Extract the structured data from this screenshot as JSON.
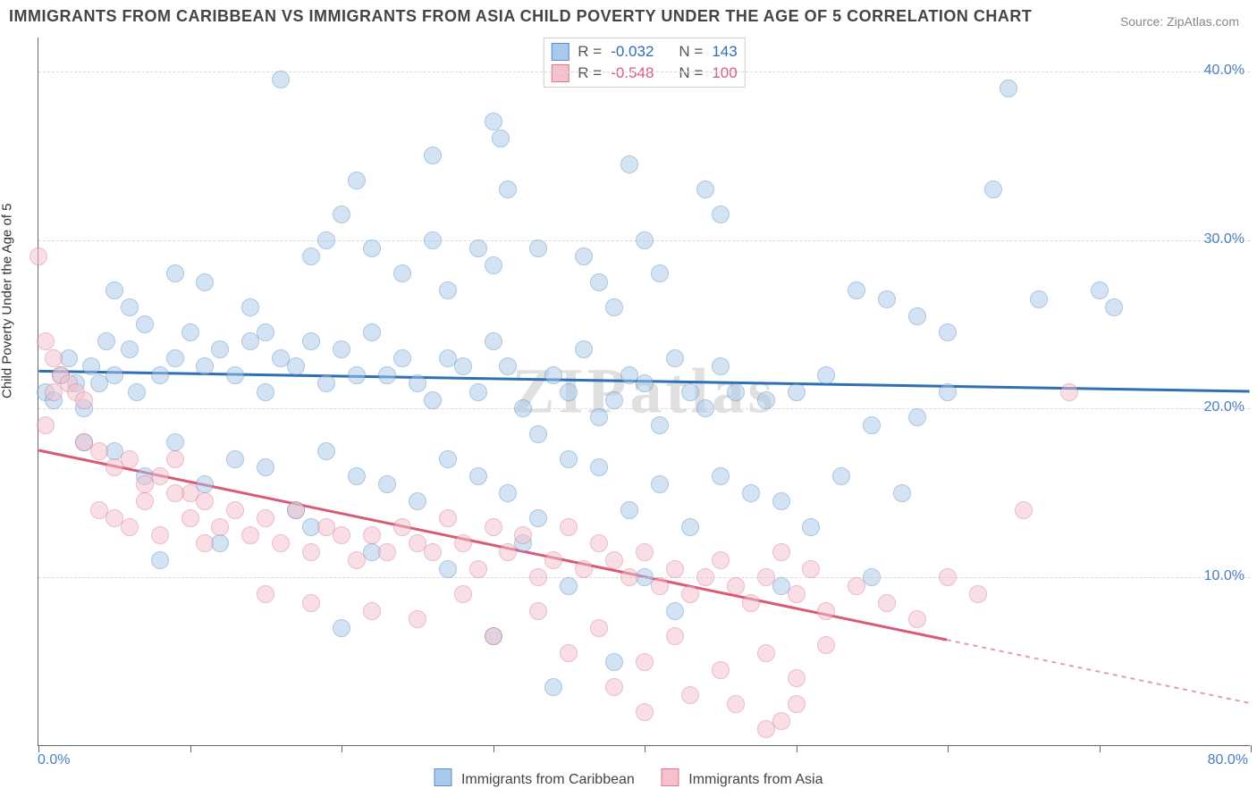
{
  "title": "IMMIGRANTS FROM CARIBBEAN VS IMMIGRANTS FROM ASIA CHILD POVERTY UNDER THE AGE OF 5 CORRELATION CHART",
  "source": "Source: ZipAtlas.com",
  "watermark": "ZIPatlas",
  "y_axis_label": "Child Poverty Under the Age of 5",
  "chart": {
    "type": "scatter",
    "xlim": [
      0,
      80
    ],
    "ylim": [
      0,
      42
    ],
    "xtick_positions": [
      0,
      10,
      20,
      30,
      40,
      50,
      60,
      70,
      80
    ],
    "yticks": [
      {
        "v": 10,
        "label": "10.0%",
        "color": "#4a7fc0"
      },
      {
        "v": 20,
        "label": "20.0%",
        "color": "#4a7fc0"
      },
      {
        "v": 30,
        "label": "30.0%",
        "color": "#4a7fc0"
      },
      {
        "v": 40,
        "label": "40.0%",
        "color": "#4a7fc0"
      }
    ],
    "x_end_labels": {
      "left": {
        "text": "0.0%",
        "color": "#4a7fc0"
      },
      "right": {
        "text": "80.0%",
        "color": "#4a7fc0"
      }
    },
    "grid_color": "#d9d9d9",
    "marker_radius": 10,
    "marker_opacity": 0.5,
    "series": [
      {
        "name": "Immigrants from Caribbean",
        "fill": "#a9c8ea",
        "stroke": "#5b8fc7",
        "line_color": "#2f6fb3",
        "trend": {
          "x0": 0,
          "y0": 22.2,
          "x1": 80,
          "y1": 21.0,
          "dashed_from": null
        },
        "stats": {
          "R": "-0.032",
          "N": "143"
        },
        "points": [
          [
            16,
            39.5
          ],
          [
            64,
            39
          ],
          [
            30,
            37
          ],
          [
            30.5,
            36
          ],
          [
            26,
            35
          ],
          [
            21,
            33.5
          ],
          [
            31,
            33
          ],
          [
            39,
            34.5
          ],
          [
            44,
            33
          ],
          [
            63,
            33
          ],
          [
            5,
            27
          ],
          [
            6,
            26
          ],
          [
            9,
            28
          ],
          [
            11,
            27.5
          ],
          [
            14,
            26
          ],
          [
            15,
            24.5
          ],
          [
            18,
            29
          ],
          [
            19,
            30
          ],
          [
            20,
            31.5
          ],
          [
            22,
            29.5
          ],
          [
            24,
            28
          ],
          [
            26,
            30
          ],
          [
            27,
            27
          ],
          [
            29,
            29.5
          ],
          [
            30,
            28.5
          ],
          [
            33,
            29.5
          ],
          [
            36,
            29
          ],
          [
            37,
            27.5
          ],
          [
            38,
            26
          ],
          [
            40,
            30
          ],
          [
            41,
            28
          ],
          [
            45,
            31.5
          ],
          [
            54,
            27
          ],
          [
            56,
            26.5
          ],
          [
            58,
            25.5
          ],
          [
            60,
            24.5
          ],
          [
            66,
            26.5
          ],
          [
            70,
            27
          ],
          [
            71,
            26
          ],
          [
            0.5,
            21
          ],
          [
            1,
            20.5
          ],
          [
            1.5,
            22
          ],
          [
            2,
            23
          ],
          [
            2.5,
            21.5
          ],
          [
            3,
            20
          ],
          [
            3.5,
            22.5
          ],
          [
            4,
            21.5
          ],
          [
            4.5,
            24
          ],
          [
            5,
            22
          ],
          [
            6,
            23.5
          ],
          [
            6.5,
            21
          ],
          [
            7,
            25
          ],
          [
            8,
            22
          ],
          [
            9,
            23
          ],
          [
            10,
            24.5
          ],
          [
            11,
            22.5
          ],
          [
            12,
            23.5
          ],
          [
            13,
            22
          ],
          [
            14,
            24
          ],
          [
            15,
            21
          ],
          [
            16,
            23
          ],
          [
            17,
            22.5
          ],
          [
            18,
            24
          ],
          [
            19,
            21.5
          ],
          [
            20,
            23.5
          ],
          [
            21,
            22
          ],
          [
            22,
            24.5
          ],
          [
            23,
            22
          ],
          [
            24,
            23
          ],
          [
            25,
            21.5
          ],
          [
            26,
            20.5
          ],
          [
            27,
            23
          ],
          [
            28,
            22.5
          ],
          [
            29,
            21
          ],
          [
            30,
            24
          ],
          [
            31,
            22.5
          ],
          [
            32,
            20
          ],
          [
            33,
            18.5
          ],
          [
            34,
            22
          ],
          [
            35,
            21
          ],
          [
            36,
            23.5
          ],
          [
            37,
            19.5
          ],
          [
            38,
            20.5
          ],
          [
            39,
            22
          ],
          [
            40,
            21.5
          ],
          [
            41,
            19
          ],
          [
            42,
            23
          ],
          [
            43,
            21
          ],
          [
            44,
            20
          ],
          [
            45,
            22.5
          ],
          [
            46,
            21
          ],
          [
            48,
            20.5
          ],
          [
            50,
            21
          ],
          [
            52,
            22
          ],
          [
            55,
            19
          ],
          [
            58,
            19.5
          ],
          [
            60,
            21
          ],
          [
            3,
            18
          ],
          [
            5,
            17.5
          ],
          [
            7,
            16
          ],
          [
            9,
            18
          ],
          [
            11,
            15.5
          ],
          [
            13,
            17
          ],
          [
            15,
            16.5
          ],
          [
            17,
            14
          ],
          [
            19,
            17.5
          ],
          [
            21,
            16
          ],
          [
            23,
            15.5
          ],
          [
            25,
            14.5
          ],
          [
            27,
            17
          ],
          [
            29,
            16
          ],
          [
            31,
            15
          ],
          [
            33,
            13.5
          ],
          [
            35,
            17
          ],
          [
            37,
            16.5
          ],
          [
            39,
            14
          ],
          [
            41,
            15.5
          ],
          [
            43,
            13
          ],
          [
            45,
            16
          ],
          [
            47,
            15
          ],
          [
            49,
            14.5
          ],
          [
            51,
            13
          ],
          [
            53,
            16
          ],
          [
            55,
            10
          ],
          [
            57,
            15
          ],
          [
            8,
            11
          ],
          [
            12,
            12
          ],
          [
            18,
            13
          ],
          [
            22,
            11.5
          ],
          [
            27,
            10.5
          ],
          [
            32,
            12
          ],
          [
            35,
            9.5
          ],
          [
            40,
            10
          ],
          [
            42,
            8
          ],
          [
            49,
            9.5
          ],
          [
            34,
            3.5
          ],
          [
            20,
            7
          ],
          [
            30,
            6.5
          ],
          [
            38,
            5
          ]
        ]
      },
      {
        "name": "Immigrants from Asia",
        "fill": "#f4c1cd",
        "stroke": "#d87a94",
        "line_color": "#d85a77",
        "trend": {
          "x0": 0,
          "y0": 17.5,
          "x1": 80,
          "y1": 2.5,
          "dashed_from": 60
        },
        "stats": {
          "R": "-0.548",
          "N": "100"
        },
        "points": [
          [
            0,
            29
          ],
          [
            0.5,
            24
          ],
          [
            1,
            23
          ],
          [
            1.5,
            22
          ],
          [
            2,
            21.5
          ],
          [
            2.5,
            21
          ],
          [
            3,
            20.5
          ],
          [
            0.5,
            19
          ],
          [
            1,
            21
          ],
          [
            68,
            21
          ],
          [
            65,
            14
          ],
          [
            3,
            18
          ],
          [
            4,
            17.5
          ],
          [
            5,
            16.5
          ],
          [
            6,
            17
          ],
          [
            7,
            15.5
          ],
          [
            8,
            16
          ],
          [
            9,
            17
          ],
          [
            10,
            15
          ],
          [
            11,
            14.5
          ],
          [
            4,
            14
          ],
          [
            5,
            13.5
          ],
          [
            6,
            13
          ],
          [
            7,
            14.5
          ],
          [
            8,
            12.5
          ],
          [
            9,
            15
          ],
          [
            10,
            13.5
          ],
          [
            11,
            12
          ],
          [
            12,
            13
          ],
          [
            13,
            14
          ],
          [
            14,
            12.5
          ],
          [
            15,
            13.5
          ],
          [
            16,
            12
          ],
          [
            17,
            14
          ],
          [
            18,
            11.5
          ],
          [
            19,
            13
          ],
          [
            20,
            12.5
          ],
          [
            21,
            11
          ],
          [
            22,
            12.5
          ],
          [
            23,
            11.5
          ],
          [
            24,
            13
          ],
          [
            25,
            12
          ],
          [
            26,
            11.5
          ],
          [
            27,
            13.5
          ],
          [
            28,
            12
          ],
          [
            29,
            10.5
          ],
          [
            30,
            13
          ],
          [
            31,
            11.5
          ],
          [
            32,
            12.5
          ],
          [
            33,
            10
          ],
          [
            34,
            11
          ],
          [
            35,
            13
          ],
          [
            36,
            10.5
          ],
          [
            37,
            12
          ],
          [
            38,
            11
          ],
          [
            39,
            10
          ],
          [
            40,
            11.5
          ],
          [
            41,
            9.5
          ],
          [
            42,
            10.5
          ],
          [
            43,
            9
          ],
          [
            44,
            10
          ],
          [
            45,
            11
          ],
          [
            46,
            9.5
          ],
          [
            47,
            8.5
          ],
          [
            48,
            10
          ],
          [
            49,
            11.5
          ],
          [
            50,
            9
          ],
          [
            51,
            10.5
          ],
          [
            52,
            8
          ],
          [
            54,
            9.5
          ],
          [
            56,
            8.5
          ],
          [
            58,
            7.5
          ],
          [
            60,
            10
          ],
          [
            62,
            9
          ],
          [
            15,
            9
          ],
          [
            18,
            8.5
          ],
          [
            22,
            8
          ],
          [
            25,
            7.5
          ],
          [
            28,
            9
          ],
          [
            30,
            6.5
          ],
          [
            33,
            8
          ],
          [
            35,
            5.5
          ],
          [
            37,
            7
          ],
          [
            40,
            5
          ],
          [
            42,
            6.5
          ],
          [
            45,
            4.5
          ],
          [
            48,
            5.5
          ],
          [
            50,
            4
          ],
          [
            52,
            6
          ],
          [
            38,
            3.5
          ],
          [
            40,
            2
          ],
          [
            43,
            3
          ],
          [
            46,
            2.5
          ],
          [
            49,
            1.5
          ],
          [
            50,
            2.5
          ],
          [
            48,
            1
          ]
        ]
      }
    ]
  },
  "stats_labels": {
    "R": "R =",
    "N": "N ="
  },
  "bottom_legend": [
    {
      "label": "Immigrants from Caribbean",
      "fill": "#a9c8ea",
      "stroke": "#5b8fc7"
    },
    {
      "label": "Immigrants from Asia",
      "fill": "#f4c1cd",
      "stroke": "#d87a94"
    }
  ]
}
